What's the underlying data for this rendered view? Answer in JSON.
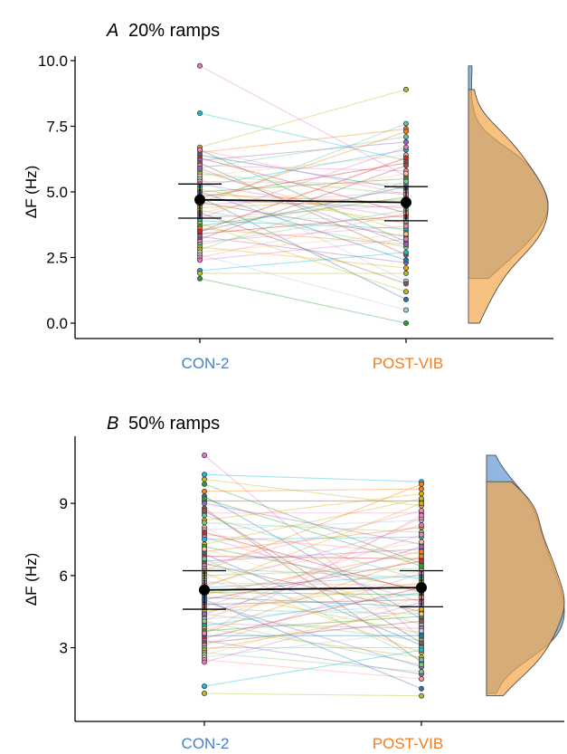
{
  "colors": {
    "con2_label": "#4a7fc0",
    "postvib_label": "#ef7d22",
    "con2_density": "#6a9fd4",
    "postvib_density": "#f4a64d",
    "mean_marker": "#000000"
  },
  "chart_data": [
    {
      "type": "scatter",
      "panel": "A",
      "title": "20% ramps",
      "ylabel": "ΔF (Hz)",
      "xlabel": "",
      "categories": [
        "CON-2",
        "POST-VIB"
      ],
      "ylim": [
        0,
        10
      ],
      "yticks": [
        "0.0",
        "2.5",
        "5.0",
        "7.5",
        "10.0"
      ],
      "ytick_values": [
        0,
        2.5,
        5,
        7.5,
        10
      ],
      "grid": false,
      "mean": [
        4.7,
        4.6
      ],
      "sd_upper": [
        5.3,
        5.2
      ],
      "sd_lower": [
        4.0,
        3.9
      ],
      "pairs": [
        [
          9.8,
          5.6
        ],
        [
          8.0,
          6.2
        ],
        [
          6.7,
          8.9
        ],
        [
          6.6,
          3.1
        ],
        [
          6.5,
          7.4
        ],
        [
          6.4,
          5.1
        ],
        [
          6.3,
          4.2
        ],
        [
          6.2,
          6.9
        ],
        [
          6.1,
          2.6
        ],
        [
          6.0,
          5.8
        ],
        [
          5.9,
          7.1
        ],
        [
          5.8,
          3.5
        ],
        [
          5.7,
          4.9
        ],
        [
          5.6,
          6.4
        ],
        [
          5.5,
          1.6
        ],
        [
          5.4,
          5.3
        ],
        [
          5.3,
          4.0
        ],
        [
          5.2,
          6.6
        ],
        [
          5.1,
          3.8
        ],
        [
          5.0,
          5.5
        ],
        [
          4.9,
          4.6
        ],
        [
          4.8,
          0.9
        ],
        [
          4.8,
          6.1
        ],
        [
          4.7,
          4.4
        ],
        [
          4.6,
          3.3
        ],
        [
          4.5,
          5.0
        ],
        [
          4.5,
          7.6
        ],
        [
          4.4,
          4.7
        ],
        [
          4.3,
          2.9
        ],
        [
          4.2,
          5.7
        ],
        [
          4.1,
          3.9
        ],
        [
          4.0,
          4.5
        ],
        [
          4.0,
          6.7
        ],
        [
          3.9,
          3.6
        ],
        [
          3.8,
          1.2
        ],
        [
          3.7,
          4.8
        ],
        [
          3.6,
          3.0
        ],
        [
          3.5,
          5.2
        ],
        [
          3.4,
          4.1
        ],
        [
          3.3,
          2.3
        ],
        [
          3.2,
          6.0
        ],
        [
          3.1,
          3.7
        ],
        [
          3.0,
          4.3
        ],
        [
          2.9,
          2.1
        ],
        [
          2.8,
          5.4
        ],
        [
          2.7,
          3.4
        ],
        [
          2.6,
          0.5
        ],
        [
          2.5,
          4.2
        ],
        [
          2.4,
          3.2
        ],
        [
          2.0,
          2.7
        ],
        [
          1.9,
          1.9
        ],
        [
          1.7,
          0.0
        ],
        [
          4.6,
          7.3
        ],
        [
          5.0,
          2.4
        ],
        [
          3.5,
          6.3
        ],
        [
          5.9,
          3.0
        ],
        [
          4.2,
          1.5
        ],
        [
          6.6,
          4.9
        ]
      ]
    },
    {
      "type": "scatter",
      "panel": "B",
      "title": "50% ramps",
      "ylabel": "ΔF (Hz)",
      "xlabel": "",
      "categories": [
        "CON-2",
        "POST-VIB"
      ],
      "ylim": [
        0.5,
        11.3
      ],
      "yticks": [
        "3",
        "6",
        "9"
      ],
      "ytick_values": [
        3,
        6,
        9
      ],
      "grid": false,
      "mean": [
        5.4,
        5.5
      ],
      "sd_upper": [
        6.2,
        6.2
      ],
      "sd_lower": [
        4.6,
        4.7
      ],
      "pairs": [
        [
          11.0,
          3.4
        ],
        [
          10.2,
          9.9
        ],
        [
          10.0,
          8.9
        ],
        [
          9.8,
          6.5
        ],
        [
          9.5,
          9.6
        ],
        [
          9.3,
          4.2
        ],
        [
          9.1,
          9.1
        ],
        [
          9.0,
          7.3
        ],
        [
          8.8,
          2.4
        ],
        [
          8.6,
          8.6
        ],
        [
          8.5,
          5.8
        ],
        [
          8.3,
          9.4
        ],
        [
          8.2,
          7.8
        ],
        [
          8.0,
          3.9
        ],
        [
          7.9,
          8.3
        ],
        [
          7.7,
          6.9
        ],
        [
          7.6,
          4.9
        ],
        [
          7.5,
          7.6
        ],
        [
          7.3,
          9.2
        ],
        [
          7.2,
          5.4
        ],
        [
          7.0,
          8.0
        ],
        [
          6.9,
          3.1
        ],
        [
          6.8,
          6.7
        ],
        [
          6.6,
          7.1
        ],
        [
          6.5,
          4.5
        ],
        [
          6.4,
          8.7
        ],
        [
          6.3,
          5.9
        ],
        [
          6.1,
          2.8
        ],
        [
          6.0,
          6.3
        ],
        [
          5.9,
          7.4
        ],
        [
          5.8,
          4.0
        ],
        [
          5.7,
          5.6
        ],
        [
          5.6,
          8.1
        ],
        [
          5.5,
          6.0
        ],
        [
          5.4,
          3.6
        ],
        [
          5.3,
          5.2
        ],
        [
          5.2,
          7.0
        ],
        [
          5.1,
          4.7
        ],
        [
          5.0,
          6.6
        ],
        [
          4.9,
          2.2
        ],
        [
          4.8,
          5.0
        ],
        [
          4.7,
          7.7
        ],
        [
          4.6,
          4.4
        ],
        [
          4.5,
          5.7
        ],
        [
          4.4,
          3.3
        ],
        [
          4.3,
          6.2
        ],
        [
          4.2,
          4.8
        ],
        [
          4.1,
          8.4
        ],
        [
          4.0,
          3.8
        ],
        [
          3.9,
          5.3
        ],
        [
          3.8,
          2.6
        ],
        [
          3.7,
          4.3
        ],
        [
          3.6,
          6.8
        ],
        [
          3.5,
          3.5
        ],
        [
          3.4,
          5.5
        ],
        [
          3.3,
          1.9
        ],
        [
          3.2,
          4.1
        ],
        [
          3.1,
          6.1
        ],
        [
          3.0,
          3.0
        ],
        [
          2.9,
          4.6
        ],
        [
          2.8,
          2.0
        ],
        [
          2.7,
          5.1
        ],
        [
          2.6,
          3.7
        ],
        [
          2.5,
          1.7
        ],
        [
          2.4,
          4.9
        ],
        [
          1.4,
          2.9
        ],
        [
          1.1,
          1.0
        ],
        [
          9.2,
          6.4
        ],
        [
          6.2,
          9.8
        ],
        [
          5.0,
          1.3
        ],
        [
          7.8,
          5.3
        ],
        [
          4.4,
          7.2
        ],
        [
          8.7,
          3.2
        ],
        [
          3.6,
          8.5
        ],
        [
          6.7,
          2.5
        ],
        [
          5.5,
          9.0
        ],
        [
          4.1,
          2.3
        ],
        [
          7.1,
          4.4
        ]
      ]
    }
  ]
}
